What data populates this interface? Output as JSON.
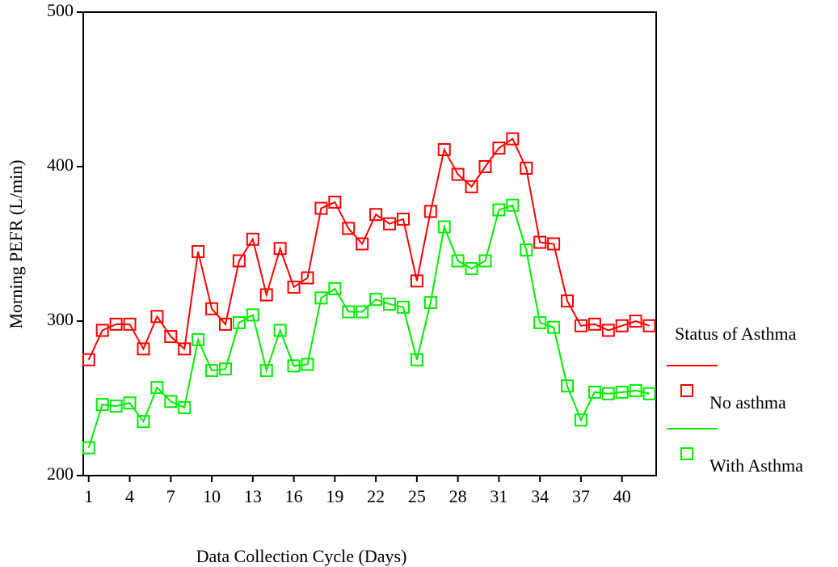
{
  "chart_data": {
    "type": "line",
    "x_label": "Data Collection Cycle (Days)",
    "y_label": "Morning PEFR (L/min)",
    "x": [
      1,
      2,
      3,
      4,
      5,
      6,
      7,
      8,
      9,
      10,
      11,
      12,
      13,
      14,
      15,
      16,
      17,
      18,
      19,
      20,
      21,
      22,
      23,
      24,
      25,
      26,
      27,
      28,
      29,
      30,
      31,
      32,
      33,
      34,
      35,
      36,
      37,
      38,
      39,
      40,
      41,
      42
    ],
    "series": [
      {
        "name": "No asthma",
        "color": "#ff0000",
        "values": [
          275,
          294,
          298,
          298,
          282,
          303,
          290,
          282,
          345,
          308,
          298,
          339,
          353,
          317,
          347,
          322,
          328,
          373,
          377,
          360,
          350,
          369,
          363,
          366,
          326,
          371,
          411,
          395,
          387,
          400,
          412,
          418,
          399,
          351,
          350,
          313,
          297,
          298,
          294,
          297,
          300,
          297
        ]
      },
      {
        "name": "With Asthma",
        "color": "#00ee00",
        "values": [
          218,
          246,
          245,
          247,
          235,
          257,
          248,
          244,
          288,
          268,
          269,
          299,
          304,
          268,
          294,
          271,
          272,
          315,
          321,
          306,
          306,
          314,
          311,
          309,
          275,
          312,
          361,
          339,
          334,
          339,
          372,
          375,
          346,
          299,
          296,
          258,
          236,
          254,
          253,
          254,
          255,
          253
        ]
      }
    ],
    "xlim": [
      0.6,
      42.5
    ],
    "xticks": [
      1,
      4,
      7,
      10,
      13,
      16,
      19,
      22,
      25,
      28,
      31,
      34,
      37,
      40
    ],
    "ylim": [
      200,
      500
    ],
    "yticks": [
      200,
      300,
      400,
      500
    ],
    "legend_title": "Status of Asthma",
    "legend_position": "right"
  }
}
